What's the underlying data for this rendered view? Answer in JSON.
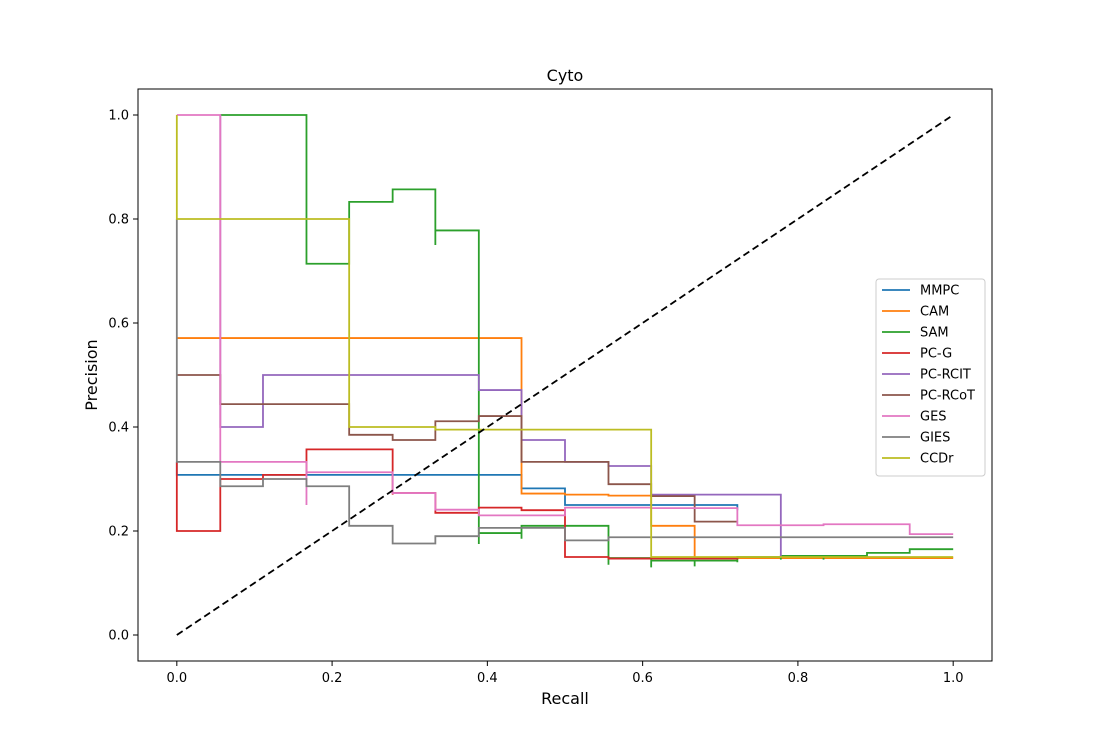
{
  "chart_data": {
    "type": "line",
    "title": "Cyto",
    "xlabel": "Recall",
    "ylabel": "Precision",
    "xlim": [
      -0.05,
      1.05
    ],
    "ylim": [
      -0.05,
      1.05
    ],
    "xticks": [
      0.0,
      0.2,
      0.4,
      0.6,
      0.8,
      1.0
    ],
    "xtick_labels": [
      "0.0",
      "0.2",
      "0.4",
      "0.6",
      "0.8",
      "1.0"
    ],
    "yticks": [
      0.0,
      0.2,
      0.4,
      0.6,
      0.8,
      1.0
    ],
    "ytick_labels": [
      "0.0",
      "0.2",
      "0.4",
      "0.6",
      "0.8",
      "1.0"
    ],
    "grid": false,
    "legend_position": "center-right",
    "reference_line": {
      "x": [
        0,
        1
      ],
      "y": [
        0,
        1
      ],
      "color": "#000000",
      "style": "dashed"
    },
    "series": [
      {
        "name": "MMPC",
        "color": "#1f77b4",
        "points": [
          [
            0,
            0.333
          ],
          [
            0,
            0.308
          ],
          [
            0.444,
            0.308
          ],
          [
            0.444,
            0.282
          ],
          [
            0.5,
            0.282
          ],
          [
            0.5,
            0.25
          ],
          [
            0.722,
            0.25
          ],
          [
            0.722,
            0.24
          ]
        ]
      },
      {
        "name": "CAM",
        "color": "#ff7f0e",
        "points": [
          [
            0,
            0.571
          ],
          [
            0.444,
            0.571
          ],
          [
            0.444,
            0.272
          ],
          [
            0.5,
            0.272
          ],
          [
            0.5,
            0.27
          ],
          [
            0.556,
            0.27
          ],
          [
            0.556,
            0.268
          ],
          [
            0.611,
            0.268
          ],
          [
            0.611,
            0.21
          ],
          [
            0.667,
            0.21
          ],
          [
            0.667,
            0.148
          ],
          [
            1.0,
            0.148
          ]
        ]
      },
      {
        "name": "SAM",
        "color": "#2ca02c",
        "points": [
          [
            0.056,
            1.0
          ],
          [
            0.167,
            1.0
          ],
          [
            0.167,
            0.75
          ],
          [
            0.167,
            0.714
          ],
          [
            0.222,
            0.714
          ],
          [
            0.222,
            0.833
          ],
          [
            0.278,
            0.833
          ],
          [
            0.278,
            0.857
          ],
          [
            0.333,
            0.857
          ],
          [
            0.333,
            0.75
          ],
          [
            0.333,
            0.778
          ],
          [
            0.389,
            0.778
          ],
          [
            0.389,
            0.175
          ],
          [
            0.389,
            0.196
          ],
          [
            0.444,
            0.196
          ],
          [
            0.444,
            0.185
          ],
          [
            0.444,
            0.21
          ],
          [
            0.556,
            0.21
          ],
          [
            0.556,
            0.135
          ],
          [
            0.556,
            0.148
          ],
          [
            0.611,
            0.148
          ],
          [
            0.611,
            0.13
          ],
          [
            0.611,
            0.143
          ],
          [
            0.667,
            0.143
          ],
          [
            0.667,
            0.132
          ],
          [
            0.667,
            0.143
          ],
          [
            0.722,
            0.143
          ],
          [
            0.722,
            0.14
          ],
          [
            0.722,
            0.15
          ],
          [
            0.778,
            0.15
          ],
          [
            0.778,
            0.145
          ],
          [
            0.778,
            0.152
          ],
          [
            0.833,
            0.152
          ],
          [
            0.833,
            0.145
          ],
          [
            0.833,
            0.152
          ],
          [
            0.889,
            0.152
          ],
          [
            0.889,
            0.158
          ],
          [
            0.944,
            0.158
          ],
          [
            0.944,
            0.165
          ],
          [
            1.0,
            0.165
          ]
        ]
      },
      {
        "name": "PC-G",
        "color": "#d62728",
        "points": [
          [
            0,
            0.333
          ],
          [
            0,
            0.2
          ],
          [
            0.056,
            0.2
          ],
          [
            0.056,
            0.3
          ],
          [
            0.111,
            0.3
          ],
          [
            0.111,
            0.308
          ],
          [
            0.167,
            0.308
          ],
          [
            0.167,
            0.357
          ],
          [
            0.278,
            0.357
          ],
          [
            0.278,
            0.27
          ],
          [
            0.278,
            0.273
          ],
          [
            0.333,
            0.273
          ],
          [
            0.333,
            0.235
          ],
          [
            0.389,
            0.235
          ],
          [
            0.389,
            0.245
          ],
          [
            0.444,
            0.245
          ],
          [
            0.444,
            0.24
          ],
          [
            0.5,
            0.24
          ],
          [
            0.5,
            0.15
          ],
          [
            0.556,
            0.15
          ],
          [
            0.556,
            0.147
          ],
          [
            0.722,
            0.147
          ],
          [
            0.722,
            0.148
          ]
        ]
      },
      {
        "name": "PC-RCIT",
        "color": "#9467bd",
        "points": [
          [
            0.056,
            1.0
          ],
          [
            0.056,
            0.4
          ],
          [
            0.111,
            0.4
          ],
          [
            0.111,
            0.5
          ],
          [
            0.389,
            0.5
          ],
          [
            0.389,
            0.471
          ],
          [
            0.444,
            0.471
          ],
          [
            0.444,
            0.375
          ],
          [
            0.5,
            0.375
          ],
          [
            0.5,
            0.333
          ],
          [
            0.556,
            0.333
          ],
          [
            0.556,
            0.325
          ],
          [
            0.611,
            0.325
          ],
          [
            0.611,
            0.27
          ],
          [
            0.778,
            0.27
          ],
          [
            0.778,
            0.15
          ]
        ]
      },
      {
        "name": "PC-RCoT",
        "color": "#8c564b",
        "points": [
          [
            0,
            0.5
          ],
          [
            0.056,
            0.5
          ],
          [
            0.056,
            0.444
          ],
          [
            0.222,
            0.444
          ],
          [
            0.222,
            0.385
          ],
          [
            0.278,
            0.385
          ],
          [
            0.278,
            0.375
          ],
          [
            0.333,
            0.375
          ],
          [
            0.333,
            0.411
          ],
          [
            0.389,
            0.411
          ],
          [
            0.389,
            0.421
          ],
          [
            0.444,
            0.421
          ],
          [
            0.444,
            0.333
          ],
          [
            0.556,
            0.333
          ],
          [
            0.556,
            0.29
          ],
          [
            0.611,
            0.29
          ],
          [
            0.611,
            0.267
          ],
          [
            0.667,
            0.267
          ],
          [
            0.667,
            0.218
          ],
          [
            0.722,
            0.218
          ]
        ]
      },
      {
        "name": "GES",
        "color": "#e377c2",
        "points": [
          [
            0,
            1.0
          ],
          [
            0.056,
            1.0
          ],
          [
            0.056,
            0.333
          ],
          [
            0.167,
            0.333
          ],
          [
            0.167,
            0.25
          ],
          [
            0.167,
            0.313
          ],
          [
            0.278,
            0.313
          ],
          [
            0.278,
            0.273
          ],
          [
            0.333,
            0.273
          ],
          [
            0.333,
            0.241
          ],
          [
            0.389,
            0.241
          ],
          [
            0.389,
            0.23
          ],
          [
            0.5,
            0.23
          ],
          [
            0.5,
            0.245
          ],
          [
            0.611,
            0.245
          ],
          [
            0.611,
            0.244
          ],
          [
            0.722,
            0.244
          ],
          [
            0.722,
            0.211
          ],
          [
            0.833,
            0.211
          ],
          [
            0.833,
            0.213
          ],
          [
            0.944,
            0.213
          ],
          [
            0.944,
            0.194
          ],
          [
            1.0,
            0.194
          ]
        ]
      },
      {
        "name": "GIES",
        "color": "#7f7f7f",
        "points": [
          [
            0,
            0.8
          ],
          [
            0,
            0.333
          ],
          [
            0.056,
            0.333
          ],
          [
            0.056,
            0.286
          ],
          [
            0.111,
            0.286
          ],
          [
            0.111,
            0.3
          ],
          [
            0.167,
            0.3
          ],
          [
            0.167,
            0.286
          ],
          [
            0.222,
            0.286
          ],
          [
            0.222,
            0.21
          ],
          [
            0.278,
            0.21
          ],
          [
            0.278,
            0.176
          ],
          [
            0.333,
            0.176
          ],
          [
            0.333,
            0.19
          ],
          [
            0.389,
            0.19
          ],
          [
            0.389,
            0.206
          ],
          [
            0.5,
            0.206
          ],
          [
            0.5,
            0.182
          ],
          [
            0.556,
            0.182
          ],
          [
            0.556,
            0.188
          ],
          [
            1.0,
            0.188
          ]
        ]
      },
      {
        "name": "CCDr",
        "color": "#bcbd22",
        "points": [
          [
            0,
            1.0
          ],
          [
            0,
            0.8
          ],
          [
            0.222,
            0.8
          ],
          [
            0.222,
            0.4
          ],
          [
            0.333,
            0.4
          ],
          [
            0.333,
            0.395
          ],
          [
            0.611,
            0.395
          ],
          [
            0.611,
            0.15
          ],
          [
            1.0,
            0.15
          ]
        ]
      }
    ]
  },
  "colors": {
    "axes": "#000000",
    "background": "#ffffff",
    "legend_border": "#cccccc"
  }
}
